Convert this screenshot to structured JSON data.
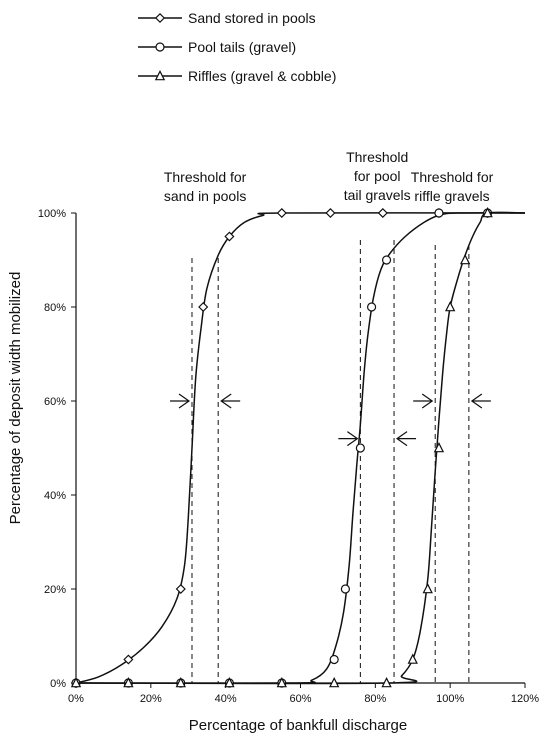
{
  "chart_data": {
    "type": "line",
    "title": "",
    "xlabel": "Percentage of bankfull discharge",
    "ylabel": "Percentage of deposit width mobilized",
    "xlim": [
      0,
      120
    ],
    "ylim": [
      0,
      100
    ],
    "x_ticks": [
      0,
      20,
      40,
      60,
      80,
      100,
      120
    ],
    "x_tick_labels": [
      "0%",
      "20%",
      "40%",
      "60%",
      "80%",
      "100%",
      "120%"
    ],
    "y_ticks": [
      0,
      20,
      40,
      60,
      80,
      100
    ],
    "y_tick_labels": [
      "0%",
      "20%",
      "40%",
      "60%",
      "80%",
      "100%"
    ],
    "legend_position": "top-left, above plot",
    "grid": false,
    "series": [
      {
        "name": "Sand stored in pools",
        "marker": "diamond",
        "points": [
          [
            0,
            0
          ],
          [
            14,
            5
          ],
          [
            28,
            20
          ],
          [
            34,
            80
          ],
          [
            41,
            95
          ],
          [
            55,
            100
          ],
          [
            68,
            100
          ],
          [
            82,
            100
          ],
          [
            97,
            100
          ],
          [
            110,
            100
          ]
        ],
        "curve": [
          [
            0,
            0
          ],
          [
            6,
            1.3
          ],
          [
            12,
            3.8
          ],
          [
            18,
            7.5
          ],
          [
            23,
            12
          ],
          [
            27,
            18
          ],
          [
            29,
            25
          ],
          [
            30,
            35
          ],
          [
            31,
            50
          ],
          [
            32,
            65
          ],
          [
            33.5,
            76
          ],
          [
            35,
            84
          ],
          [
            38,
            91
          ],
          [
            41,
            95
          ],
          [
            45,
            98
          ],
          [
            50,
            99.5
          ],
          [
            55,
            100
          ],
          [
            120,
            100
          ]
        ]
      },
      {
        "name": "Pool tails (gravel)",
        "marker": "circle",
        "points": [
          [
            0,
            0
          ],
          [
            14,
            0
          ],
          [
            28,
            0
          ],
          [
            41,
            0
          ],
          [
            55,
            0
          ],
          [
            69,
            5
          ],
          [
            72,
            20
          ],
          [
            76,
            50
          ],
          [
            79,
            80
          ],
          [
            83,
            90
          ],
          [
            97,
            100
          ],
          [
            110,
            100
          ]
        ],
        "curve": [
          [
            0,
            0
          ],
          [
            58,
            0
          ],
          [
            63,
            0.6
          ],
          [
            67,
            3
          ],
          [
            69.5,
            8
          ],
          [
            71.5,
            15
          ],
          [
            73,
            25
          ],
          [
            74,
            36
          ],
          [
            75,
            46
          ],
          [
            76,
            55
          ],
          [
            77,
            66
          ],
          [
            78,
            74
          ],
          [
            79.5,
            82
          ],
          [
            81.5,
            88
          ],
          [
            84,
            91.5
          ],
          [
            88,
            95
          ],
          [
            93,
            98
          ],
          [
            97,
            99.5
          ],
          [
            102,
            100
          ],
          [
            120,
            100
          ]
        ]
      },
      {
        "name": "Riffles (gravel & cobble)",
        "marker": "triangle",
        "points": [
          [
            0,
            0
          ],
          [
            14,
            0
          ],
          [
            28,
            0
          ],
          [
            41,
            0
          ],
          [
            55,
            0
          ],
          [
            69,
            0
          ],
          [
            83,
            0
          ],
          [
            90,
            5
          ],
          [
            94,
            20
          ],
          [
            97,
            50
          ],
          [
            100,
            80
          ],
          [
            104,
            90
          ],
          [
            110,
            100
          ]
        ],
        "curve": [
          [
            0,
            0
          ],
          [
            84,
            0
          ],
          [
            87,
            1.5
          ],
          [
            90,
            5
          ],
          [
            92,
            11
          ],
          [
            94,
            22
          ],
          [
            95,
            33
          ],
          [
            96,
            45
          ],
          [
            97,
            56
          ],
          [
            98,
            66
          ],
          [
            99,
            74
          ],
          [
            100,
            80
          ],
          [
            102,
            86
          ],
          [
            104,
            91
          ],
          [
            106,
            95
          ],
          [
            108,
            98
          ],
          [
            110,
            100
          ],
          [
            120,
            100
          ]
        ]
      }
    ],
    "annotations": [
      {
        "lines": [
          "Threshold for",
          "sand in pools"
        ],
        "range": [
          31,
          38
        ]
      },
      {
        "lines": [
          "Threshold",
          "for pool",
          "tail gravels"
        ],
        "range": [
          76,
          85
        ]
      },
      {
        "lines": [
          "Threshold for",
          "riffle gravels"
        ],
        "range": [
          96,
          105
        ]
      }
    ]
  }
}
